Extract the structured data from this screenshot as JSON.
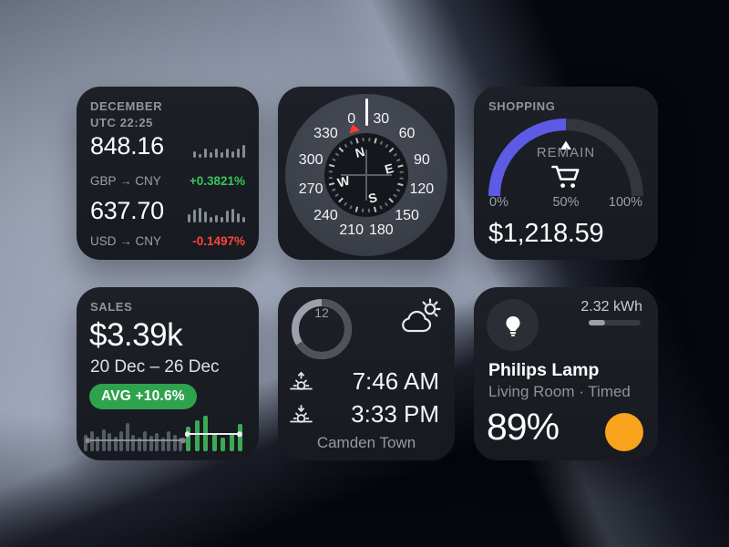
{
  "theme": {
    "card_bg": "#1a1d23",
    "accent_indigo": "#5d5be6",
    "badge_green": "#2fa24e",
    "positive_green": "#34c759",
    "negative_red": "#ff453a",
    "toggle_orange": "#f9a21b",
    "spark_gray": "#878d95",
    "bar_gray": "#565c64",
    "bar_green": "#3ca954",
    "ring_light": "#9aa1ab",
    "ring_dark": "#4d525b",
    "needle_red": "#fb3b30"
  },
  "currency": {
    "month": "DECEMBER",
    "utc": "UTC 22:25",
    "rows": [
      {
        "value": "848.16",
        "pair": "GBP → CNY",
        "change": "+0.3821%",
        "trend": "up",
        "sparkline": [
          7,
          4,
          10,
          6,
          10,
          6,
          10,
          7,
          10,
          14
        ]
      },
      {
        "value": "637.70",
        "pair": "USD → CNY",
        "change": "-0.1497%",
        "trend": "down",
        "sparkline": [
          9,
          14,
          16,
          12,
          6,
          8,
          6,
          13,
          15,
          10,
          6
        ]
      }
    ]
  },
  "compass": {
    "heading_deg": 15,
    "degree_labels": [
      0,
      30,
      60,
      90,
      120,
      150,
      180,
      210,
      240,
      270,
      300,
      330
    ],
    "cardinals": [
      {
        "label": "N",
        "deg": 0
      },
      {
        "label": "E",
        "deg": 90
      },
      {
        "label": "S",
        "deg": 180
      },
      {
        "label": "W",
        "deg": 270
      }
    ]
  },
  "shopping": {
    "title": "SHOPPING",
    "gauge_label": "REMAIN",
    "percent": 50,
    "ticks": [
      "0%",
      "50%",
      "100%"
    ],
    "amount": "$1,218.59"
  },
  "sales": {
    "title": "SALES",
    "total": "$3.39k",
    "range": "20 Dec – 26 Dec",
    "badge": "AVG +10.6%",
    "chart": {
      "gray": [
        18,
        22,
        16,
        24,
        20,
        16,
        22,
        31,
        18,
        15,
        22,
        17,
        20,
        15,
        22,
        18,
        15
      ],
      "green": [
        27,
        34,
        39,
        20,
        15,
        20,
        30
      ]
    }
  },
  "clock": {
    "hour": "12",
    "ring": {
      "dark_sweep_deg": 238,
      "dot_deg": 238
    },
    "sunrise": "7:46 AM",
    "sunset": "3:33 PM",
    "location": "Camden Town"
  },
  "home": {
    "energy": "2.32 kWh",
    "energy_percent": 31,
    "device": "Philips Lamp",
    "meta": "Living Room · Timed",
    "level": "89%"
  }
}
